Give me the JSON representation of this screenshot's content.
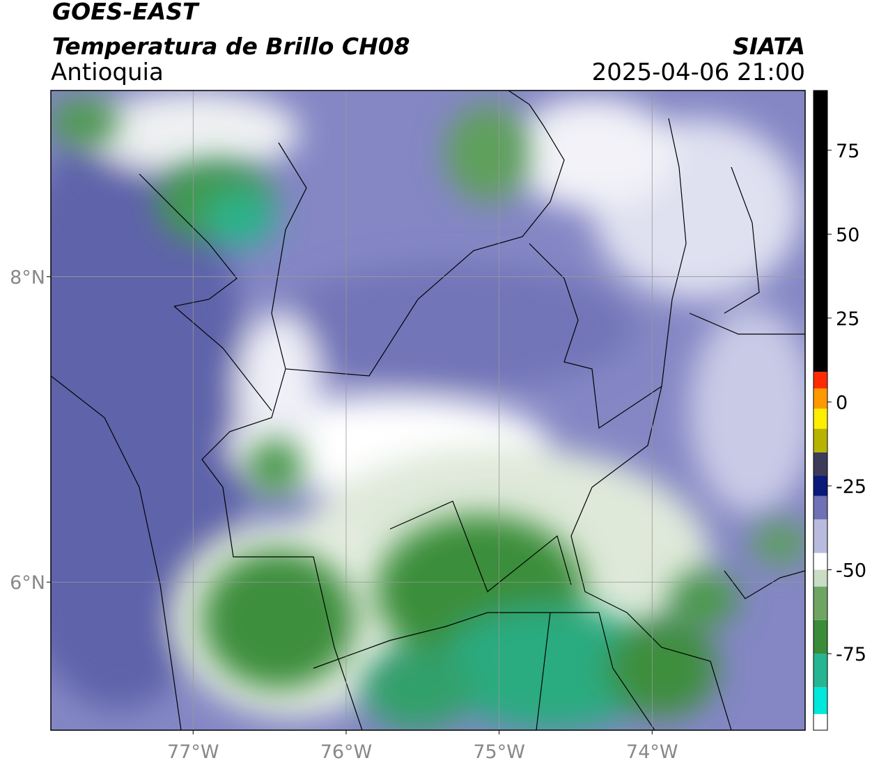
{
  "header": {
    "title": "GOES-EAST",
    "subtitle": "Temperatura de Brillo CH08",
    "region": "Antioquia",
    "source": "SIATA",
    "datetime": "2025-04-06 21:00"
  },
  "chart_data": {
    "type": "map",
    "xlim": [
      -77.93,
      -73.0
    ],
    "ylim": [
      5.03,
      9.22
    ],
    "xticks": [
      {
        "value": -77,
        "label": "77°W"
      },
      {
        "value": -76,
        "label": "76°W"
      },
      {
        "value": -75,
        "label": "75°W"
      },
      {
        "value": -74,
        "label": "74°W"
      }
    ],
    "yticks": [
      {
        "value": 6,
        "label": "6°N"
      },
      {
        "value": 8,
        "label": "8°N"
      }
    ],
    "grid": true,
    "colorbar": {
      "lim": [
        -97.8,
        92.8
      ],
      "ticks": [
        -75,
        -50,
        -25,
        0,
        25,
        50,
        75
      ],
      "levels": [
        -97.8,
        -93,
        -85,
        -75,
        -65,
        -55,
        -50,
        -45,
        -35,
        -28,
        -22,
        -15,
        -8,
        -2,
        4,
        9,
        92.8
      ],
      "colors": [
        "#ffffff",
        "#00e8dc",
        "#25b592",
        "#3a8c38",
        "#6ea562",
        "#c9dcc4",
        "#ffffff",
        "#b9bbde",
        "#6f72b4",
        "#0a1a7a",
        "#3c3c58",
        "#b8b300",
        "#ffee00",
        "#ff9900",
        "#ff2a00",
        "#000000"
      ]
    }
  }
}
